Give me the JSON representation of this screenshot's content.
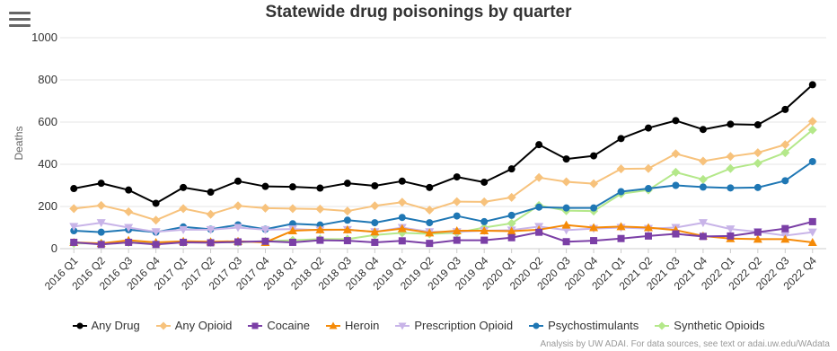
{
  "toolbar": {
    "menu_icon": "hamburger-menu-icon"
  },
  "credits": "Analysis by UW ADAI. For data sources, see text or adai.uw.edu/WAdata",
  "chart_data": {
    "type": "line",
    "title": "Statewide drug poisonings by quarter",
    "xlabel": "",
    "ylabel": "Deaths",
    "ylim": [
      0,
      1000
    ],
    "yticks": [
      0,
      200,
      400,
      600,
      800,
      1000
    ],
    "grid": true,
    "legend_position": "bottom",
    "categories": [
      "2016 Q1",
      "2016 Q2",
      "2016 Q3",
      "2016 Q4",
      "2017 Q1",
      "2017 Q2",
      "2017 Q3",
      "2017 Q4",
      "2018 Q1",
      "2018 Q2",
      "2018 Q3",
      "2018 Q4",
      "2019 Q1",
      "2019 Q2",
      "2019 Q3",
      "2019 Q4",
      "2020 Q1",
      "2020 Q2",
      "2020 Q3",
      "2020 Q4",
      "2021 Q1",
      "2021 Q2",
      "2021 Q3",
      "2021 Q4",
      "2022 Q1",
      "2022 Q2",
      "2022 Q3",
      "2022 Q4"
    ],
    "series": [
      {
        "name": "Any Drug",
        "color": "#000000",
        "marker": "circle",
        "values": [
          285,
          310,
          278,
          215,
          290,
          268,
          320,
          295,
          293,
          287,
          310,
          298,
          320,
          290,
          340,
          315,
          378,
          493,
          425,
          440,
          522,
          572,
          607,
          565,
          590,
          587,
          660,
          777
        ]
      },
      {
        "name": "Any Opioid",
        "color": "#f7c27c",
        "marker": "diamond",
        "values": [
          190,
          205,
          175,
          135,
          190,
          163,
          203,
          192,
          190,
          188,
          178,
          203,
          220,
          183,
          223,
          222,
          243,
          337,
          317,
          308,
          378,
          380,
          450,
          415,
          437,
          455,
          493,
          603
        ]
      },
      {
        "name": "Cocaine",
        "color": "#7b3fa6",
        "marker": "square",
        "values": [
          30,
          20,
          30,
          20,
          30,
          28,
          32,
          35,
          30,
          40,
          38,
          30,
          37,
          25,
          40,
          40,
          52,
          78,
          33,
          38,
          48,
          60,
          70,
          58,
          60,
          78,
          95,
          128
        ]
      },
      {
        "name": "Heroin",
        "color": "#f58a07",
        "marker": "triangle",
        "values": [
          30,
          25,
          40,
          30,
          35,
          33,
          35,
          30,
          85,
          90,
          90,
          80,
          95,
          75,
          85,
          85,
          83,
          90,
          112,
          100,
          105,
          100,
          88,
          60,
          48,
          45,
          45,
          30
        ]
      },
      {
        "name": "Prescription Opioid",
        "color": "#c8b4e8",
        "marker": "triangle-down",
        "values": [
          105,
          123,
          100,
          80,
          90,
          90,
          100,
          90,
          93,
          88,
          90,
          80,
          100,
          80,
          80,
          85,
          88,
          105,
          88,
          95,
          100,
          95,
          100,
          123,
          93,
          80,
          62,
          78
        ]
      },
      {
        "name": "Psychostimulants",
        "color": "#1f77b4",
        "marker": "circle",
        "values": [
          85,
          78,
          90,
          78,
          103,
          92,
          113,
          92,
          118,
          112,
          135,
          123,
          148,
          123,
          155,
          128,
          158,
          197,
          193,
          193,
          270,
          285,
          300,
          292,
          288,
          290,
          322,
          413
        ]
      },
      {
        "name": "Synthetic Opioids",
        "color": "#b4e88a",
        "marker": "diamond",
        "values": [
          25,
          25,
          30,
          25,
          30,
          30,
          30,
          35,
          40,
          45,
          45,
          65,
          75,
          70,
          75,
          100,
          120,
          205,
          180,
          178,
          260,
          278,
          362,
          328,
          380,
          405,
          455,
          563
        ]
      }
    ]
  }
}
